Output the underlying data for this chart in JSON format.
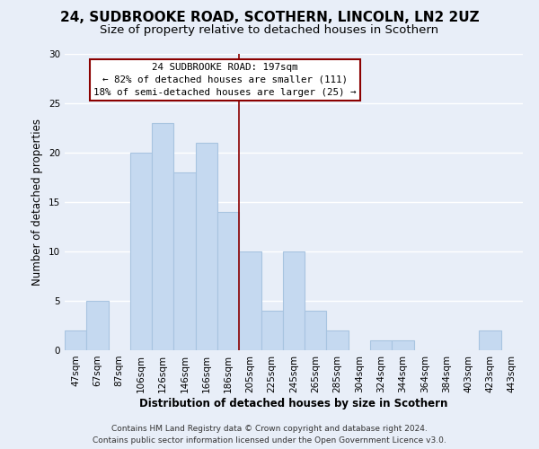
{
  "title": "24, SUDBROOKE ROAD, SCOTHERN, LINCOLN, LN2 2UZ",
  "subtitle": "Size of property relative to detached houses in Scothern",
  "xlabel": "Distribution of detached houses by size in Scothern",
  "ylabel": "Number of detached properties",
  "footer_line1": "Contains HM Land Registry data © Crown copyright and database right 2024.",
  "footer_line2": "Contains public sector information licensed under the Open Government Licence v3.0.",
  "bar_labels": [
    "47sqm",
    "67sqm",
    "87sqm",
    "106sqm",
    "126sqm",
    "146sqm",
    "166sqm",
    "186sqm",
    "205sqm",
    "225sqm",
    "245sqm",
    "265sqm",
    "285sqm",
    "304sqm",
    "324sqm",
    "344sqm",
    "364sqm",
    "384sqm",
    "403sqm",
    "423sqm",
    "443sqm"
  ],
  "bar_values": [
    2,
    5,
    0,
    20,
    23,
    18,
    21,
    14,
    10,
    4,
    10,
    4,
    2,
    0,
    1,
    1,
    0,
    0,
    0,
    2,
    0
  ],
  "bar_color": "#c5d9f0",
  "bar_edge_color": "#a8c4e0",
  "vline_color": "#8b0000",
  "vline_x_index": 8,
  "ylim": [
    0,
    30
  ],
  "yticks": [
    0,
    5,
    10,
    15,
    20,
    25,
    30
  ],
  "annotation_title": "24 SUDBROOKE ROAD: 197sqm",
  "annotation_line1": "← 82% of detached houses are smaller (111)",
  "annotation_line2": "18% of semi-detached houses are larger (25) →",
  "annotation_box_facecolor": "#ffffff",
  "annotation_box_edgecolor": "#8b0000",
  "background_color": "#e8eef8",
  "grid_color": "#ffffff",
  "title_fontsize": 11,
  "subtitle_fontsize": 9.5,
  "axis_fontsize": 8.5,
  "tick_fontsize": 7.5,
  "footer_fontsize": 6.5
}
